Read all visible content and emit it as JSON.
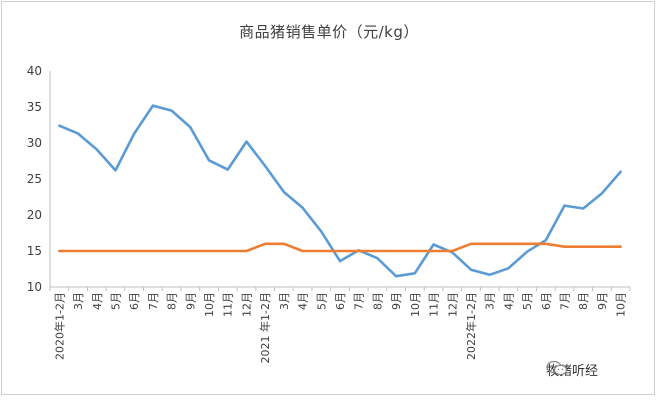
{
  "chart_data": {
    "type": "line",
    "title": "商品猪销售单价（元/kg）",
    "xlabel": "",
    "ylabel": "",
    "ylim": [
      10,
      40
    ],
    "yticks": [
      10,
      15,
      20,
      25,
      30,
      35,
      40
    ],
    "grid": false,
    "legend": "none",
    "categories": [
      "2020年1-2月",
      "3月",
      "4月",
      "5月",
      "6月",
      "7月",
      "8月",
      "9月",
      "10月",
      "11月",
      "12月",
      "2021 年1-2月",
      "3月",
      "4月",
      "5月",
      "6月",
      "7月",
      "8月",
      "9月",
      "10月",
      "11月",
      "12月",
      "2022年1-2月",
      "3月",
      "4月",
      "5月",
      "6月",
      "7月",
      "8月",
      "9月",
      "10月"
    ],
    "series": [
      {
        "color": "#5b9bd5",
        "values": [
          32.4,
          31.3,
          29.1,
          26.2,
          31.3,
          35.2,
          34.5,
          32.2,
          27.6,
          26.3,
          30.2,
          26.8,
          23.2,
          21.0,
          17.7,
          13.6,
          15.1,
          14.0,
          11.5,
          11.9,
          15.9,
          14.8,
          12.4,
          11.7,
          12.6,
          14.9,
          16.5,
          21.3,
          20.9,
          23.0,
          26.0
        ]
      },
      {
        "color": "#ed7d31",
        "values": [
          15,
          15,
          15,
          15,
          15,
          15,
          15,
          15,
          15,
          15,
          15,
          16,
          16,
          15,
          15,
          15,
          15,
          15,
          15,
          15,
          15,
          15,
          16,
          16,
          16,
          16,
          16,
          15.6,
          15.6,
          15.6,
          15.6
        ]
      }
    ]
  },
  "watermark": {
    "text": "牧猪听经",
    "icon": "wechat-icon"
  }
}
